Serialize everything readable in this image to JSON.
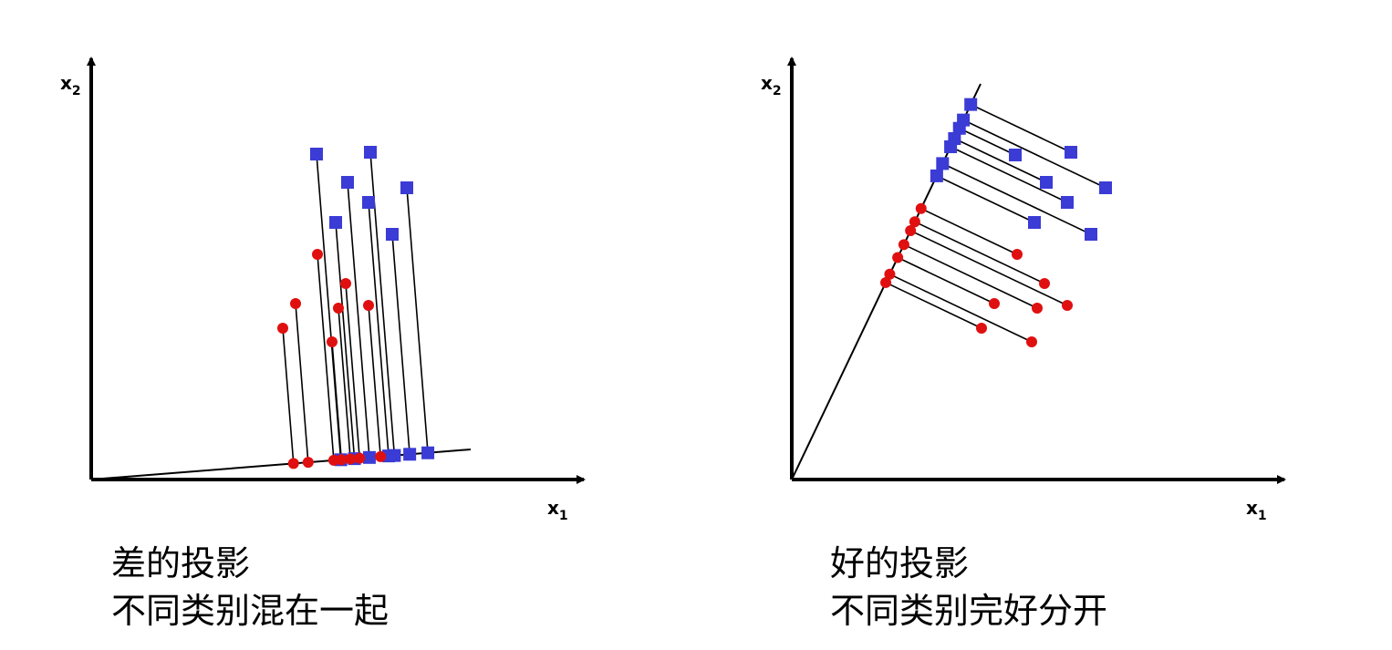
{
  "colors": {
    "class_a": "#3b3bd6",
    "class_b": "#e01010",
    "lines": "#000000"
  },
  "panels": [
    {
      "id": "bad",
      "x_label": "x",
      "x_sub": "1",
      "y_label": "x",
      "y_sub": "2",
      "caption_line1": "差的投影",
      "caption_line2": "不同类别混在一起"
    },
    {
      "id": "good",
      "x_label": "x",
      "x_sub": "1",
      "y_label": "x",
      "y_sub": "2",
      "caption_line1": "好的投影",
      "caption_line2": "不同类别完好分开"
    }
  ]
}
